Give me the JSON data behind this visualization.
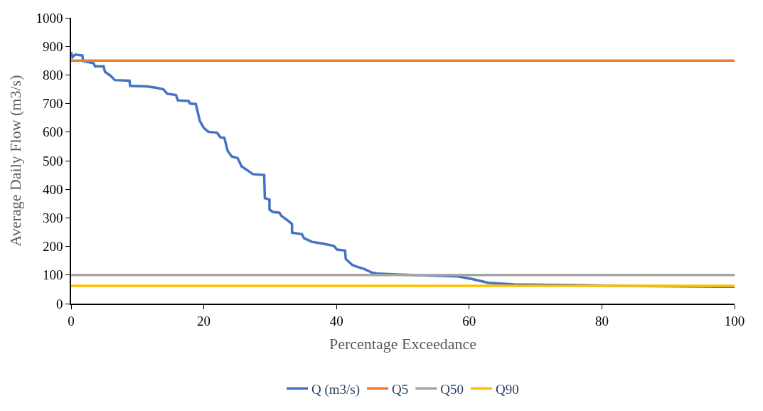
{
  "chart_data": {
    "type": "line",
    "xlabel": "Percentage Exceedance",
    "ylabel": "Average Daily Flow (m3/s)",
    "xlim": [
      0,
      100
    ],
    "xticks": [
      0,
      20,
      40,
      60,
      80,
      100
    ],
    "ylim": [
      0,
      1000
    ],
    "yticks": [
      0,
      100,
      200,
      300,
      400,
      500,
      600,
      700,
      800,
      900,
      1000
    ],
    "legend": "bottom",
    "marker": "none",
    "line_style": "solid",
    "series": [
      {
        "name": "Q (m3/s)",
        "color": "#4472c4",
        "x": [
          0,
          0.2,
          0.6,
          1.7,
          1.8,
          3.4,
          3.6,
          4.9,
          5.1,
          5.9,
          6.6,
          8.8,
          8.9,
          11.4,
          12.9,
          13.9,
          14.5,
          15.8,
          16.1,
          17.7,
          17.9,
          18.8,
          19.1,
          19.4,
          20,
          20.7,
          22,
          22.5,
          23.1,
          23.6,
          24.2,
          25.1,
          25.7,
          26.6,
          27.4,
          29.1,
          29.2,
          29.9,
          29.9,
          30.4,
          31.4,
          31.7,
          32.8,
          33.3,
          33.3,
          34.8,
          35.1,
          36.3,
          37.9,
          39.6,
          40.1,
          41.3,
          41.4,
          42.4,
          43.1,
          44.2,
          45.4,
          46.2,
          49.1,
          58.3,
          60.5,
          62.9,
          66.8,
          74.7,
          82.5,
          100
        ],
        "values": [
          880,
          862,
          871,
          868,
          849,
          841,
          830,
          830,
          811,
          798,
          782,
          780,
          762,
          760,
          755,
          750,
          734,
          730,
          711,
          709,
          700,
          698,
          669,
          639,
          615,
          601,
          598,
          582,
          580,
          534,
          515,
          509,
          480,
          466,
          453,
          450,
          369,
          364,
          329,
          321,
          318,
          307,
          288,
          278,
          248,
          243,
          229,
          216,
          210,
          202,
          189,
          186,
          156,
          135,
          129,
          121,
          108,
          105,
          102,
          95,
          86,
          73,
          67,
          65,
          62,
          59
        ]
      },
      {
        "name": "Q5",
        "color": "#ed7d31",
        "x": [
          0,
          100
        ],
        "values": [
          850,
          850
        ]
      },
      {
        "name": "Q50",
        "color": "#a5a5a5",
        "x": [
          0,
          100
        ],
        "values": [
          100,
          100
        ]
      },
      {
        "name": "Q90",
        "color": "#ffc000",
        "x": [
          0,
          100
        ],
        "values": [
          62,
          62
        ]
      }
    ]
  }
}
